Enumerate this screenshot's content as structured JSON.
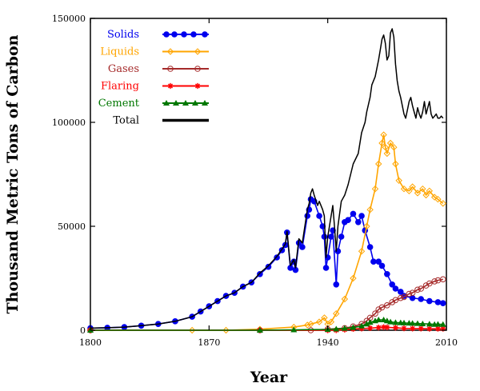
{
  "chart_data": {
    "type": "line",
    "title": "",
    "xlabel": "Year",
    "ylabel": "Thousand Metric Tons of Carbon",
    "xlim": [
      1800,
      2010
    ],
    "ylim": [
      0,
      150000
    ],
    "x_ticks": [
      1800,
      1870,
      1940,
      2010
    ],
    "y_ticks": [
      0,
      50000,
      100000,
      150000
    ],
    "x_tick_labels": [
      "1800",
      "1870",
      "1940",
      "2010"
    ],
    "y_tick_labels": [
      "0",
      "50000",
      "100000",
      "150000"
    ],
    "grid": false,
    "legend_position": "top-left",
    "series": [
      {
        "name": "Solids",
        "color": "#0000ee",
        "marker": "dot",
        "points": [
          [
            1800,
            1000
          ],
          [
            1810,
            1200
          ],
          [
            1820,
            1500
          ],
          [
            1830,
            2200
          ],
          [
            1840,
            3000
          ],
          [
            1850,
            4300
          ],
          [
            1860,
            6500
          ],
          [
            1865,
            9000
          ],
          [
            1870,
            11500
          ],
          [
            1875,
            14000
          ],
          [
            1880,
            16500
          ],
          [
            1885,
            18000
          ],
          [
            1890,
            21000
          ],
          [
            1895,
            23000
          ],
          [
            1900,
            27000
          ],
          [
            1905,
            30500
          ],
          [
            1910,
            35000
          ],
          [
            1913,
            38500
          ],
          [
            1915,
            41000
          ],
          [
            1916,
            47000
          ],
          [
            1918,
            30000
          ],
          [
            1920,
            33000
          ],
          [
            1921,
            29000
          ],
          [
            1923,
            42000
          ],
          [
            1925,
            40000
          ],
          [
            1928,
            55000
          ],
          [
            1929,
            58000
          ],
          [
            1930,
            63000
          ],
          [
            1932,
            62000
          ],
          [
            1935,
            55000
          ],
          [
            1937,
            50000
          ],
          [
            1938,
            45000
          ],
          [
            1939,
            30000
          ],
          [
            1940,
            35000
          ],
          [
            1942,
            45000
          ],
          [
            1943,
            48000
          ],
          [
            1945,
            22000
          ],
          [
            1946,
            38000
          ],
          [
            1948,
            45000
          ],
          [
            1950,
            52000
          ],
          [
            1952,
            53000
          ],
          [
            1955,
            56000
          ],
          [
            1958,
            52000
          ],
          [
            1960,
            55000
          ],
          [
            1962,
            48000
          ],
          [
            1965,
            40000
          ],
          [
            1967,
            33000
          ],
          [
            1970,
            33000
          ],
          [
            1972,
            31000
          ],
          [
            1975,
            27000
          ],
          [
            1978,
            22000
          ],
          [
            1980,
            20000
          ],
          [
            1983,
            18500
          ],
          [
            1985,
            16500
          ],
          [
            1990,
            15500
          ],
          [
            1995,
            15000
          ],
          [
            2000,
            14000
          ],
          [
            2005,
            13500
          ],
          [
            2008,
            13000
          ]
        ]
      },
      {
        "name": "Liquids",
        "color": "#ffa500",
        "marker": "diamond",
        "points": [
          [
            1800,
            0
          ],
          [
            1860,
            0
          ],
          [
            1880,
            0
          ],
          [
            1900,
            500
          ],
          [
            1920,
            1500
          ],
          [
            1928,
            2500
          ],
          [
            1930,
            3000
          ],
          [
            1935,
            4000
          ],
          [
            1938,
            6000
          ],
          [
            1940,
            3000
          ],
          [
            1942,
            4000
          ],
          [
            1945,
            8000
          ],
          [
            1950,
            15000
          ],
          [
            1955,
            25000
          ],
          [
            1960,
            38000
          ],
          [
            1963,
            50000
          ],
          [
            1965,
            58000
          ],
          [
            1968,
            68000
          ],
          [
            1970,
            80000
          ],
          [
            1972,
            90000
          ],
          [
            1973,
            94000
          ],
          [
            1974,
            88000
          ],
          [
            1975,
            85000
          ],
          [
            1977,
            90000
          ],
          [
            1979,
            88000
          ],
          [
            1980,
            80000
          ],
          [
            1982,
            72000
          ],
          [
            1985,
            68000
          ],
          [
            1988,
            67000
          ],
          [
            1990,
            69000
          ],
          [
            1993,
            66000
          ],
          [
            1996,
            68000
          ],
          [
            1998,
            65000
          ],
          [
            2000,
            67000
          ],
          [
            2003,
            64000
          ],
          [
            2005,
            63000
          ],
          [
            2008,
            61000
          ]
        ]
      },
      {
        "name": "Gases",
        "color": "#a52a2a",
        "marker": "circle",
        "points": [
          [
            1800,
            0
          ],
          [
            1900,
            0
          ],
          [
            1930,
            0
          ],
          [
            1940,
            500
          ],
          [
            1950,
            1000
          ],
          [
            1955,
            1800
          ],
          [
            1960,
            3000
          ],
          [
            1963,
            4500
          ],
          [
            1965,
            6000
          ],
          [
            1968,
            8000
          ],
          [
            1970,
            10000
          ],
          [
            1972,
            11000
          ],
          [
            1975,
            12000
          ],
          [
            1978,
            13500
          ],
          [
            1980,
            14500
          ],
          [
            1983,
            15500
          ],
          [
            1985,
            16000
          ],
          [
            1988,
            17500
          ],
          [
            1990,
            18000
          ],
          [
            1993,
            19500
          ],
          [
            1995,
            20000
          ],
          [
            1998,
            21500
          ],
          [
            2000,
            22500
          ],
          [
            2003,
            23500
          ],
          [
            2005,
            24000
          ],
          [
            2008,
            24500
          ]
        ]
      },
      {
        "name": "Flaring",
        "color": "#ff0000",
        "marker": "star",
        "points": [
          [
            1800,
            0
          ],
          [
            1900,
            0
          ],
          [
            1940,
            0
          ],
          [
            1945,
            0
          ],
          [
            1950,
            300
          ],
          [
            1955,
            600
          ],
          [
            1960,
            800
          ],
          [
            1965,
            1000
          ],
          [
            1970,
            1300
          ],
          [
            1973,
            1500
          ],
          [
            1975,
            1400
          ],
          [
            1980,
            1200
          ],
          [
            1985,
            900
          ],
          [
            1990,
            800
          ],
          [
            1995,
            800
          ],
          [
            2000,
            700
          ],
          [
            2005,
            700
          ],
          [
            2008,
            700
          ]
        ]
      },
      {
        "name": "Cement",
        "color": "#007700",
        "marker": "triangle",
        "points": [
          [
            1800,
            0
          ],
          [
            1900,
            0
          ],
          [
            1920,
            200
          ],
          [
            1940,
            400
          ],
          [
            1945,
            600
          ],
          [
            1950,
            900
          ],
          [
            1955,
            1300
          ],
          [
            1960,
            2000
          ],
          [
            1963,
            3000
          ],
          [
            1965,
            3800
          ],
          [
            1968,
            4500
          ],
          [
            1970,
            5000
          ],
          [
            1973,
            5000
          ],
          [
            1975,
            4500
          ],
          [
            1977,
            4000
          ],
          [
            1980,
            3700
          ],
          [
            1983,
            3600
          ],
          [
            1985,
            3500
          ],
          [
            1988,
            3400
          ],
          [
            1990,
            3300
          ],
          [
            1993,
            3200
          ],
          [
            1996,
            3100
          ],
          [
            2000,
            3000
          ],
          [
            2003,
            2800
          ],
          [
            2005,
            2900
          ],
          [
            2008,
            2800
          ]
        ]
      },
      {
        "name": "Total",
        "color": "#000000",
        "marker": "none",
        "points": [
          [
            1800,
            1000
          ],
          [
            1810,
            1200
          ],
          [
            1820,
            1500
          ],
          [
            1830,
            2200
          ],
          [
            1840,
            3000
          ],
          [
            1850,
            4300
          ],
          [
            1860,
            6500
          ],
          [
            1865,
            9000
          ],
          [
            1870,
            11500
          ],
          [
            1875,
            14000
          ],
          [
            1880,
            16500
          ],
          [
            1885,
            18000
          ],
          [
            1890,
            21000
          ],
          [
            1895,
            23000
          ],
          [
            1900,
            27500
          ],
          [
            1905,
            31000
          ],
          [
            1910,
            35500
          ],
          [
            1913,
            39000
          ],
          [
            1915,
            41500
          ],
          [
            1916,
            47500
          ],
          [
            1918,
            31000
          ],
          [
            1920,
            34000
          ],
          [
            1921,
            30000
          ],
          [
            1923,
            44000
          ],
          [
            1925,
            42000
          ],
          [
            1928,
            58000
          ],
          [
            1929,
            61000
          ],
          [
            1930,
            66000
          ],
          [
            1931,
            68000
          ],
          [
            1932,
            65000
          ],
          [
            1934,
            60000
          ],
          [
            1935,
            62000
          ],
          [
            1937,
            58000
          ],
          [
            1938,
            55000
          ],
          [
            1939,
            35000
          ],
          [
            1940,
            45000
          ],
          [
            1942,
            55000
          ],
          [
            1943,
            60000
          ],
          [
            1944,
            50000
          ],
          [
            1945,
            38000
          ],
          [
            1946,
            50000
          ],
          [
            1948,
            62000
          ],
          [
            1950,
            65000
          ],
          [
            1952,
            70000
          ],
          [
            1955,
            80000
          ],
          [
            1958,
            85000
          ],
          [
            1960,
            95000
          ],
          [
            1962,
            100000
          ],
          [
            1963,
            105000
          ],
          [
            1965,
            112000
          ],
          [
            1966,
            118000
          ],
          [
            1968,
            122000
          ],
          [
            1970,
            130000
          ],
          [
            1971,
            135000
          ],
          [
            1972,
            140000
          ],
          [
            1973,
            142000
          ],
          [
            1974,
            138000
          ],
          [
            1975,
            130000
          ],
          [
            1976,
            132000
          ],
          [
            1977,
            143000
          ],
          [
            1978,
            145000
          ],
          [
            1979,
            141000
          ],
          [
            1980,
            128000
          ],
          [
            1981,
            120000
          ],
          [
            1982,
            115000
          ],
          [
            1983,
            112000
          ],
          [
            1984,
            108000
          ],
          [
            1985,
            104000
          ],
          [
            1986,
            102000
          ],
          [
            1987,
            106000
          ],
          [
            1988,
            110000
          ],
          [
            1989,
            112000
          ],
          [
            1990,
            108000
          ],
          [
            1991,
            105000
          ],
          [
            1992,
            102000
          ],
          [
            1993,
            107000
          ],
          [
            1994,
            104000
          ],
          [
            1995,
            102000
          ],
          [
            1996,
            105000
          ],
          [
            1997,
            110000
          ],
          [
            1998,
            104000
          ],
          [
            1999,
            107000
          ],
          [
            2000,
            110000
          ],
          [
            2001,
            104000
          ],
          [
            2002,
            102000
          ],
          [
            2003,
            103000
          ],
          [
            2004,
            104000
          ],
          [
            2005,
            102000
          ],
          [
            2006,
            102000
          ],
          [
            2007,
            103000
          ],
          [
            2008,
            102000
          ]
        ]
      }
    ]
  }
}
